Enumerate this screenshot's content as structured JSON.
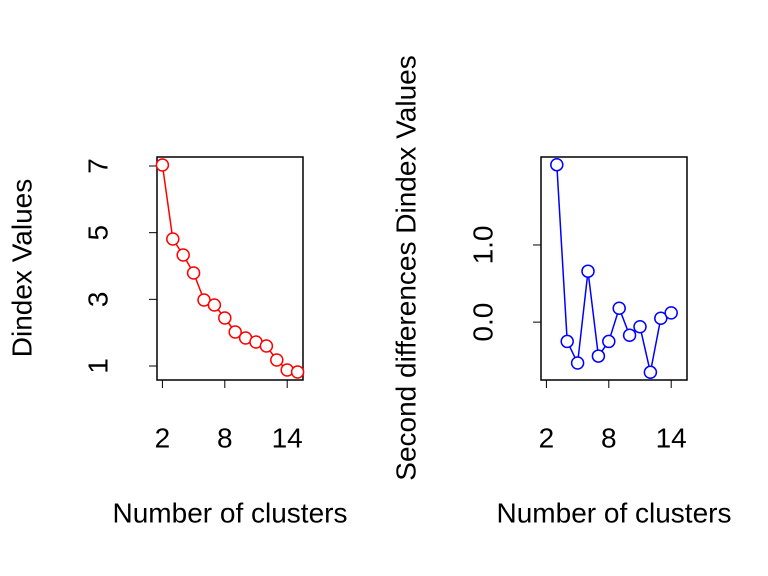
{
  "chart_data": [
    {
      "type": "line",
      "color": "#ff0000",
      "x_label": "Number of clusters",
      "y_label": "Dindex Values",
      "x": [
        2,
        3,
        4,
        5,
        6,
        7,
        8,
        9,
        10,
        11,
        12,
        13,
        14,
        15
      ],
      "values": [
        7.03,
        4.81,
        4.33,
        3.79,
        2.98,
        2.83,
        2.44,
        2.02,
        1.84,
        1.72,
        1.6,
        1.18,
        0.88,
        0.82
      ],
      "xlim": [
        1.48,
        15.52
      ],
      "ylim": [
        0.58,
        7.27
      ],
      "xticks": [
        2,
        8,
        14
      ],
      "yticks": [
        1,
        3,
        5,
        7
      ]
    },
    {
      "type": "line",
      "color": "#0000ff",
      "x_label": "Number of clusters",
      "y_label": "Second differences Dindex Values",
      "x": [
        2,
        3,
        4,
        5,
        6,
        7,
        8,
        9,
        10,
        11,
        12,
        13,
        14,
        15
      ],
      "values": [
        null,
        2.04,
        -0.25,
        -0.53,
        0.66,
        -0.44,
        -0.25,
        0.18,
        -0.17,
        -0.06,
        -0.65,
        0.05,
        0.12,
        null
      ],
      "xlim": [
        1.48,
        15.52
      ],
      "ylim": [
        -0.75,
        2.14
      ],
      "xticks": [
        2,
        8,
        14
      ],
      "yticks": [
        {
          "value": 0,
          "label": "0.0"
        },
        {
          "value": 1,
          "label": "1.0"
        }
      ]
    }
  ]
}
